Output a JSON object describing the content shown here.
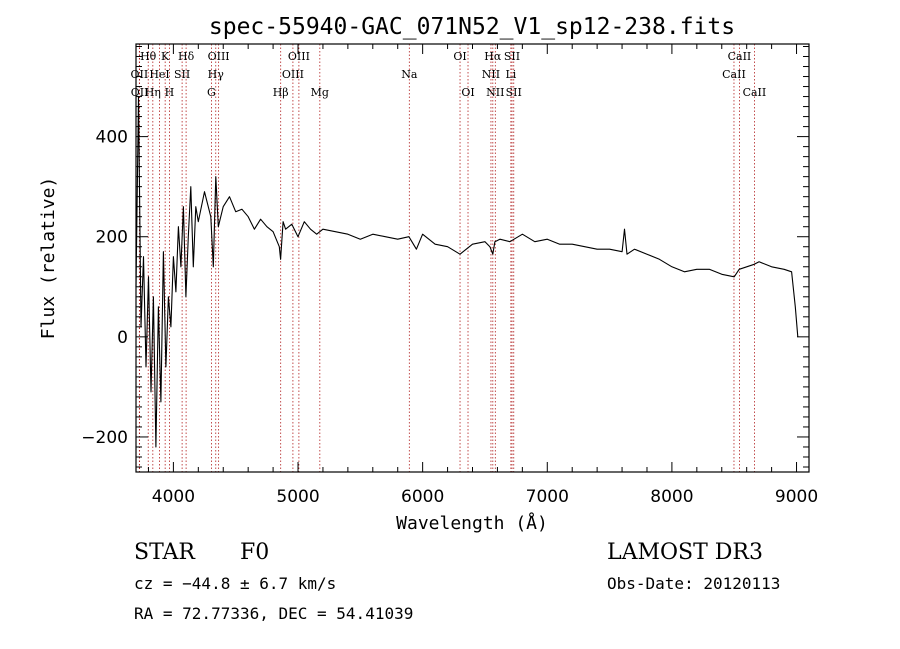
{
  "chart_data": {
    "type": "line",
    "title": "spec-55940-GAC_071N52_V1_sp12-238.fits",
    "xlabel": "Wavelength (Å)",
    "ylabel": "Flux (relative)",
    "xlim": [
      3700,
      9100
    ],
    "ylim": [
      -270,
      585
    ],
    "x_ticks": [
      4000,
      5000,
      6000,
      7000,
      8000,
      9000
    ],
    "x_tick_labels": [
      "4000",
      "5000",
      "6000",
      "7000",
      "8000",
      "9000"
    ],
    "y_ticks": [
      -200,
      0,
      200,
      400
    ],
    "y_tick_labels": [
      "−200",
      "0",
      "200",
      "400"
    ],
    "grid": false,
    "series": [
      {
        "name": "flux",
        "color": "#000000",
        "x": [
          3700,
          3720,
          3740,
          3760,
          3780,
          3800,
          3820,
          3840,
          3860,
          3880,
          3900,
          3920,
          3940,
          3960,
          3980,
          4000,
          4020,
          4040,
          4060,
          4080,
          4100,
          4120,
          4140,
          4160,
          4180,
          4200,
          4250,
          4300,
          4320,
          4340,
          4360,
          4400,
          4450,
          4500,
          4550,
          4600,
          4650,
          4700,
          4750,
          4800,
          4850,
          4860,
          4880,
          4900,
          4950,
          5000,
          5050,
          5100,
          5150,
          5200,
          5300,
          5400,
          5500,
          5600,
          5700,
          5800,
          5890,
          5950,
          6000,
          6100,
          6200,
          6300,
          6400,
          6500,
          6540,
          6563,
          6580,
          6620,
          6700,
          6800,
          6900,
          7000,
          7100,
          7200,
          7300,
          7400,
          7500,
          7600,
          7620,
          7640,
          7700,
          7800,
          7900,
          8000,
          8100,
          8200,
          8300,
          8400,
          8500,
          8540,
          8600,
          8660,
          8700,
          8800,
          8900,
          8960,
          8990,
          9010
        ],
        "values": [
          100,
          480,
          20,
          160,
          -60,
          120,
          -110,
          80,
          -220,
          60,
          -130,
          170,
          -60,
          80,
          20,
          160,
          90,
          220,
          140,
          260,
          80,
          200,
          300,
          140,
          260,
          230,
          290,
          240,
          140,
          320,
          220,
          260,
          280,
          250,
          255,
          240,
          215,
          235,
          220,
          210,
          180,
          155,
          230,
          215,
          225,
          200,
          230,
          215,
          205,
          215,
          210,
          205,
          195,
          205,
          200,
          195,
          200,
          175,
          205,
          185,
          180,
          165,
          185,
          190,
          180,
          165,
          190,
          195,
          190,
          205,
          190,
          195,
          185,
          185,
          180,
          175,
          175,
          170,
          215,
          165,
          175,
          165,
          155,
          140,
          130,
          135,
          135,
          125,
          120,
          135,
          140,
          145,
          150,
          140,
          135,
          130,
          60,
          0
        ]
      }
    ],
    "spectral_lines": [
      {
        "label": "Hθ",
        "wavelength": 3798,
        "row": 0
      },
      {
        "label": "K",
        "wavelength": 3934,
        "row": 0
      },
      {
        "label": "Hδ",
        "wavelength": 4102,
        "row": 0
      },
      {
        "label": "OIII",
        "wavelength": 4363,
        "row": 0
      },
      {
        "label": "OIII",
        "wavelength": 5007,
        "row": 0
      },
      {
        "label": "OI",
        "wavelength": 6300,
        "row": 0
      },
      {
        "label": "Hα",
        "wavelength": 6563,
        "row": 0
      },
      {
        "label": "SII",
        "wavelength": 6717,
        "row": 0
      },
      {
        "label": "CaII",
        "wavelength": 8542,
        "row": 0
      },
      {
        "label": "OII",
        "wavelength": 3727,
        "row": 1
      },
      {
        "label": "HeI",
        "wavelength": 3889,
        "row": 1
      },
      {
        "label": "SII",
        "wavelength": 4070,
        "row": 1
      },
      {
        "label": "Hγ",
        "wavelength": 4340,
        "row": 1
      },
      {
        "label": "OIII",
        "wavelength": 4959,
        "row": 1
      },
      {
        "label": "Na",
        "wavelength": 5893,
        "row": 1
      },
      {
        "label": "NII",
        "wavelength": 6548,
        "row": 1
      },
      {
        "label": "Li",
        "wavelength": 6708,
        "row": 1
      },
      {
        "label": "CaII",
        "wavelength": 8498,
        "row": 1
      },
      {
        "label": "OII",
        "wavelength": 3729,
        "row": 2
      },
      {
        "label": "Hη",
        "wavelength": 3835,
        "row": 2
      },
      {
        "label": "H",
        "wavelength": 3968,
        "row": 2
      },
      {
        "label": "G",
        "wavelength": 4305,
        "row": 2
      },
      {
        "label": "Hβ",
        "wavelength": 4861,
        "row": 2
      },
      {
        "label": "Mg",
        "wavelength": 5175,
        "row": 2
      },
      {
        "label": "OI",
        "wavelength": 6364,
        "row": 2
      },
      {
        "label": "NII",
        "wavelength": 6583,
        "row": 2
      },
      {
        "label": "SII",
        "wavelength": 6731,
        "row": 2
      },
      {
        "label": "CaII",
        "wavelength": 8662,
        "row": 2
      }
    ]
  },
  "info": {
    "class_label": "STAR",
    "subclass": "F0",
    "survey": "LAMOST DR3",
    "redshift": "cz = −44.8 ± 6.7 km/s",
    "obs_date": "Obs-Date: 20120113",
    "coords": "RA =  72.77336, DEC =  54.41039"
  },
  "colors": {
    "line_marker": "#b22222",
    "flux": "#000000",
    "axis": "#000000"
  }
}
